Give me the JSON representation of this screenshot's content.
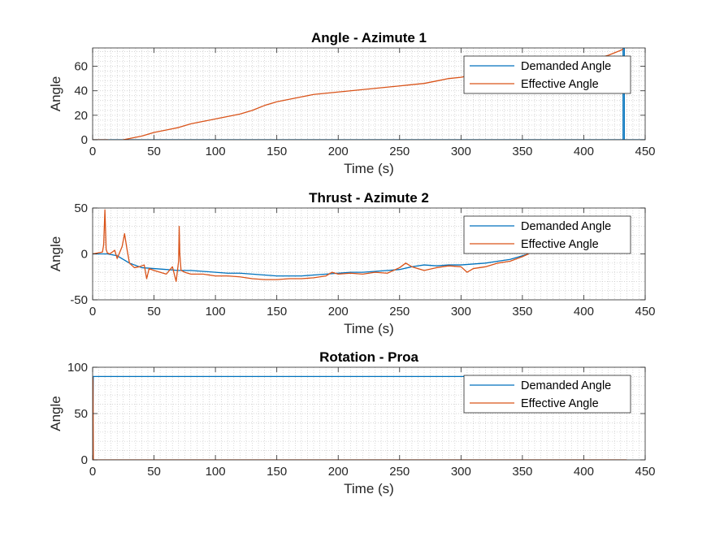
{
  "chart_data": [
    {
      "type": "line",
      "title": "Angle - Azimute 1",
      "xlabel": "Time (s)",
      "ylabel": "Angle",
      "xlim": [
        0,
        450
      ],
      "ylim": [
        0,
        75
      ],
      "xticks": [
        0,
        50,
        100,
        150,
        200,
        250,
        300,
        350,
        400,
        450
      ],
      "yticks": [
        0,
        20,
        40,
        60
      ],
      "grid": "minor dotted",
      "legend_position": "top-right",
      "series": [
        {
          "name": "Demanded Angle",
          "color": "#0072BD",
          "x": [
            0,
            432,
            432,
            433,
            433,
            434,
            434,
            450
          ],
          "y": [
            0,
            0,
            75,
            75,
            0,
            0,
            0,
            0
          ]
        },
        {
          "name": "Effective Angle",
          "color": "#D95319",
          "x": [
            0,
            12,
            18,
            22,
            25,
            30,
            40,
            50,
            60,
            70,
            80,
            90,
            100,
            110,
            120,
            130,
            140,
            150,
            160,
            170,
            180,
            190,
            200,
            210,
            220,
            230,
            240,
            250,
            260,
            270,
            280,
            290,
            300,
            310,
            320,
            330,
            340,
            350,
            360,
            370,
            380,
            390,
            400,
            410,
            420,
            425,
            430,
            432
          ],
          "y": [
            0,
            0,
            -1,
            -1,
            0,
            1,
            3,
            6,
            8,
            10,
            13,
            15,
            17,
            19,
            21,
            24,
            28,
            31,
            33,
            35,
            37,
            38,
            39,
            40,
            41,
            42,
            43,
            44,
            45,
            46,
            48,
            50,
            51,
            53,
            55,
            56,
            57,
            58,
            59,
            60,
            61,
            62,
            64,
            66,
            69,
            71,
            73,
            74
          ]
        }
      ]
    },
    {
      "type": "line",
      "title": "Thrust - Azimute 2",
      "xlabel": "Time (s)",
      "ylabel": "Angle",
      "xlim": [
        0,
        450
      ],
      "ylim": [
        -50,
        50
      ],
      "xticks": [
        0,
        50,
        100,
        150,
        200,
        250,
        300,
        350,
        400,
        450
      ],
      "yticks": [
        -50,
        0,
        50
      ],
      "grid": "minor dotted",
      "legend_position": "top-right",
      "series": [
        {
          "name": "Demanded Angle",
          "color": "#0072BD",
          "x": [
            0,
            10,
            12,
            20,
            30,
            40,
            50,
            60,
            70,
            80,
            90,
            100,
            110,
            120,
            130,
            140,
            150,
            160,
            170,
            180,
            190,
            200,
            210,
            220,
            230,
            240,
            250,
            260,
            270,
            280,
            290,
            300,
            310,
            320,
            330,
            340,
            350,
            355
          ],
          "y": [
            0,
            0,
            0,
            -2,
            -10,
            -15,
            -16,
            -17,
            -18,
            -18,
            -19,
            -20,
            -21,
            -21,
            -22,
            -23,
            -24,
            -24,
            -24,
            -23,
            -22,
            -21,
            -20,
            -20,
            -19,
            -18,
            -17,
            -14,
            -12,
            -13,
            -12,
            -12,
            -11,
            -10,
            -8,
            -6,
            -2,
            0
          ]
        },
        {
          "name": "Effective Angle",
          "color": "#D95319",
          "x": [
            0,
            8,
            9,
            10,
            11,
            12,
            14,
            16,
            18,
            20,
            24,
            26,
            28,
            30,
            34,
            38,
            42,
            44,
            46,
            50,
            55,
            60,
            65,
            68,
            70,
            70.5,
            71,
            72,
            75,
            80,
            90,
            100,
            110,
            120,
            130,
            140,
            150,
            160,
            170,
            180,
            190,
            195,
            200,
            210,
            220,
            230,
            240,
            250,
            255,
            260,
            270,
            280,
            290,
            300,
            305,
            310,
            320,
            330,
            340,
            350,
            355
          ],
          "y": [
            0,
            2,
            10,
            48,
            5,
            1,
            0,
            2,
            4,
            -5,
            8,
            22,
            5,
            -10,
            -15,
            -14,
            -12,
            -27,
            -16,
            -18,
            -20,
            -22,
            -14,
            -30,
            -8,
            30,
            0,
            -18,
            -20,
            -22,
            -22,
            -24,
            -24,
            -25,
            -27,
            -28,
            -28,
            -27,
            -27,
            -26,
            -24,
            -20,
            -22,
            -21,
            -22,
            -20,
            -21,
            -15,
            -10,
            -14,
            -18,
            -15,
            -13,
            -14,
            -20,
            -16,
            -14,
            -10,
            -8,
            -3,
            0
          ]
        }
      ]
    },
    {
      "type": "line",
      "title": "Rotation - Proa",
      "xlabel": "Time (s)",
      "ylabel": "Angle",
      "xlim": [
        0,
        450
      ],
      "ylim": [
        0,
        100
      ],
      "xticks": [
        0,
        50,
        100,
        150,
        200,
        250,
        300,
        350,
        400,
        450
      ],
      "yticks": [
        0,
        50,
        100
      ],
      "grid": "minor dotted",
      "legend_position": "top-right",
      "series": [
        {
          "name": "Demanded Angle",
          "color": "#0072BD",
          "x": [
            0,
            0.5,
            1,
            435
          ],
          "y": [
            0,
            90,
            90,
            90
          ]
        },
        {
          "name": "Effective Angle",
          "color": "#D95319",
          "x": [
            0,
            0.3,
            0.6,
            1,
            435
          ],
          "y": [
            90,
            85,
            0,
            0,
            0
          ]
        }
      ]
    }
  ]
}
